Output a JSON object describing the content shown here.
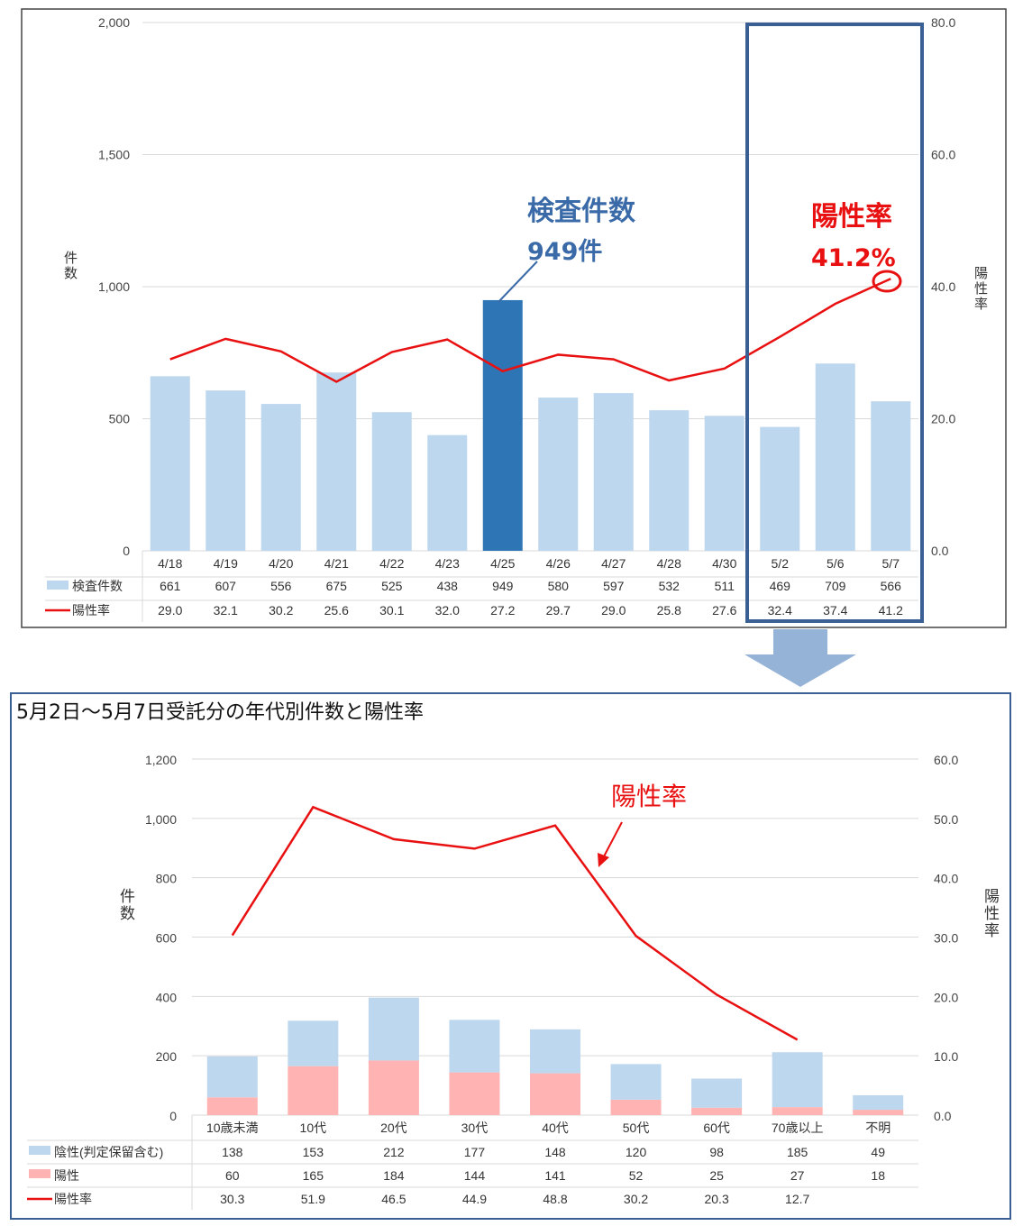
{
  "chart_data": [
    {
      "type": "bar",
      "categories": [
        "4/18",
        "4/19",
        "4/20",
        "4/21",
        "4/22",
        "4/23",
        "4/25",
        "4/26",
        "4/27",
        "4/28",
        "4/30",
        "5/2",
        "5/6",
        "5/7"
      ],
      "series": [
        {
          "name": "検査件数",
          "kind": "bar",
          "axis": "left",
          "values": [
            661,
            607,
            556,
            675,
            525,
            438,
            949,
            580,
            597,
            532,
            511,
            469,
            709,
            566
          ],
          "display": [
            "661",
            "607",
            "556",
            "675",
            "525",
            "438",
            "949",
            "580",
            "597",
            "532",
            "511",
            "469",
            "709",
            "566"
          ]
        },
        {
          "name": "陽性率",
          "kind": "line",
          "axis": "right",
          "values": [
            29.0,
            32.1,
            30.2,
            25.6,
            30.1,
            32.0,
            27.2,
            29.7,
            29.0,
            25.8,
            27.6,
            32.4,
            37.4,
            41.2
          ],
          "display": [
            "29.0",
            "32.1",
            "30.2",
            "25.6",
            "30.1",
            "32.0",
            "27.2",
            "29.7",
            "29.0",
            "25.8",
            "27.6",
            "32.4",
            "37.4",
            "41.2"
          ]
        }
      ],
      "ylabel": "件数",
      "y2label": "陽性率",
      "ylim": [
        0,
        2000
      ],
      "y2lim": [
        0,
        80
      ],
      "yticks": [
        "0",
        "500",
        "1,000",
        "1,500",
        "2,000"
      ],
      "y2ticks": [
        "0.0",
        "20.0",
        "40.0",
        "60.0",
        "80.0"
      ],
      "highlight_category": "4/25",
      "highlight_range": [
        "5/2",
        "5/7"
      ],
      "annotations": [
        {
          "line1": "検査件数",
          "line2": "949件",
          "color": "#3a6aa8",
          "target": "4/25"
        },
        {
          "line1": "陽性率",
          "line2": "41.2%",
          "color": "#e81010",
          "target": "5/7"
        }
      ],
      "colors": {
        "bar": "#bdd7ee",
        "bar_highlight": "#2e75b6",
        "line": "#e81010",
        "frame": "#3a5f95"
      }
    },
    {
      "type": "bar",
      "title": "5月2日～5月7日受託分の年代別件数と陽性率",
      "categories": [
        "10歳未満",
        "10代",
        "20代",
        "30代",
        "40代",
        "50代",
        "60代",
        "70歳以上",
        "不明"
      ],
      "stacked": true,
      "series": [
        {
          "name": "陰性(判定保留含む)",
          "kind": "bar",
          "axis": "left",
          "values": [
            138,
            153,
            212,
            177,
            148,
            120,
            98,
            185,
            49
          ],
          "display": [
            "138",
            "153",
            "212",
            "177",
            "148",
            "120",
            "98",
            "185",
            "49"
          ]
        },
        {
          "name": "陽性",
          "kind": "bar",
          "axis": "left",
          "values": [
            60,
            165,
            184,
            144,
            141,
            52,
            25,
            27,
            18
          ],
          "display": [
            "60",
            "165",
            "184",
            "144",
            "141",
            "52",
            "25",
            "27",
            "18"
          ]
        },
        {
          "name": "陽性率",
          "kind": "line",
          "axis": "right",
          "values": [
            30.3,
            51.9,
            46.5,
            44.9,
            48.8,
            30.2,
            20.3,
            12.7,
            null
          ],
          "display": [
            "30.3",
            "51.9",
            "46.5",
            "44.9",
            "48.8",
            "30.2",
            "20.3",
            "12.7",
            ""
          ]
        }
      ],
      "ylabel": "件数",
      "y2label": "陽性率",
      "ylim": [
        0,
        1200
      ],
      "y2lim": [
        0,
        60
      ],
      "yticks": [
        "0",
        "200",
        "400",
        "600",
        "800",
        "1,000",
        "1,200"
      ],
      "y2ticks": [
        "0.0",
        "10.0",
        "20.0",
        "30.0",
        "40.0",
        "50.0",
        "60.0"
      ],
      "annotations": [
        {
          "text": "陽性率",
          "color": "#e81010"
        }
      ],
      "colors": {
        "negative": "#bdd7ee",
        "positive": "#ffb3b3",
        "line": "#e81010",
        "frame": "#3a5f95"
      }
    }
  ]
}
